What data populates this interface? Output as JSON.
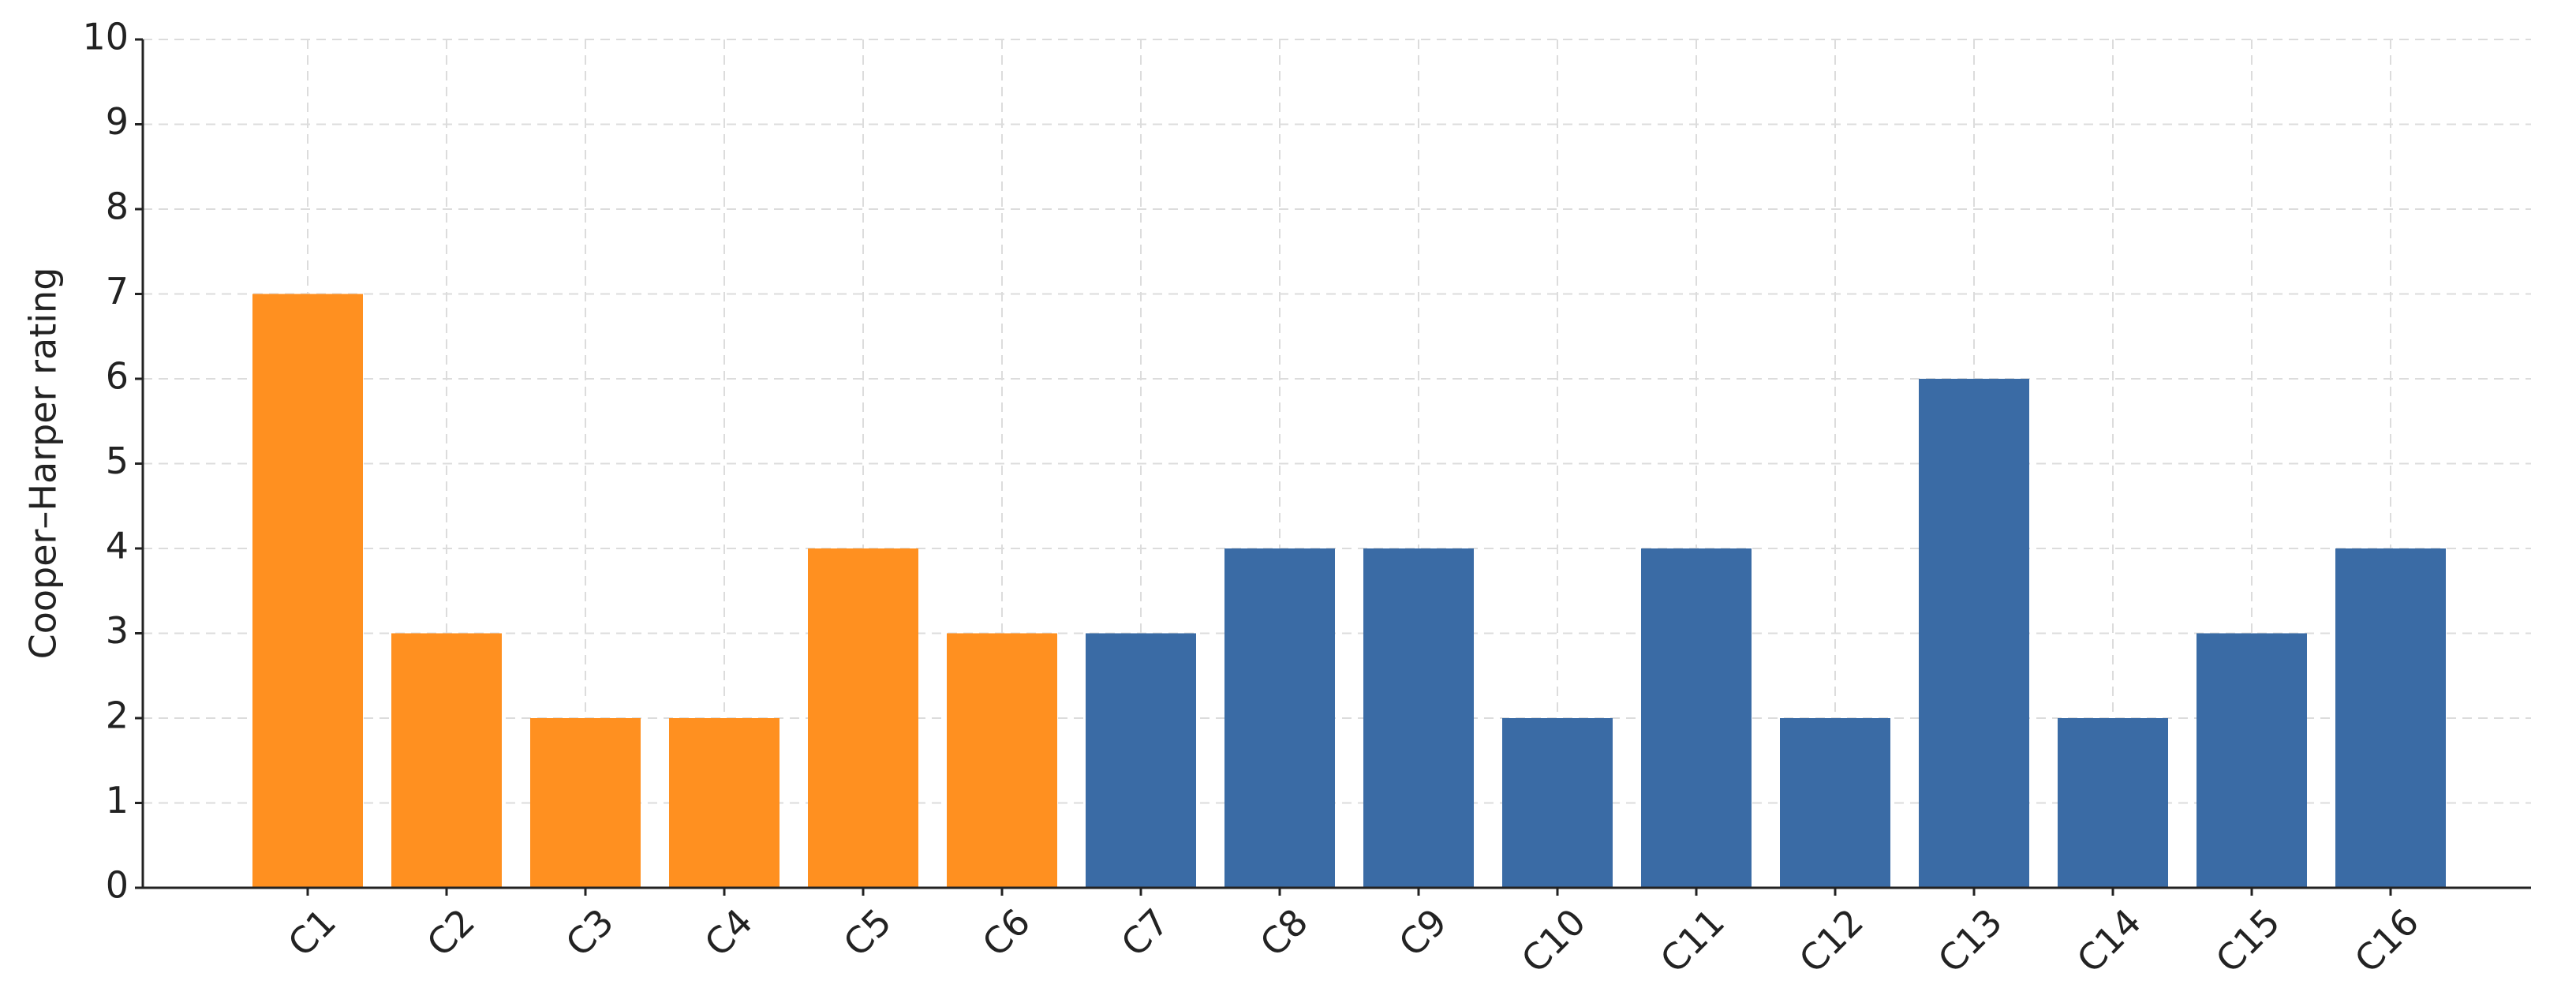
{
  "chart_data": {
    "type": "bar",
    "ylabel": "Cooper–Harper rating",
    "categories": [
      "C1",
      "C2",
      "C3",
      "C4",
      "C5",
      "C6",
      "C7",
      "C8",
      "C9",
      "C10",
      "C11",
      "C12",
      "C13",
      "C14",
      "C15",
      "C16"
    ],
    "values": [
      7,
      3,
      2,
      2,
      4,
      3,
      3,
      4,
      4,
      2,
      4,
      2,
      6,
      2,
      3,
      4
    ],
    "colors": [
      "#ff9020",
      "#ff9020",
      "#ff9020",
      "#ff9020",
      "#ff9020",
      "#ff9020",
      "#3a6ba5",
      "#3a6ba5",
      "#3a6ba5",
      "#3a6ba5",
      "#3a6ba5",
      "#3a6ba5",
      "#3a6ba5",
      "#3a6ba5",
      "#3a6ba5",
      "#3a6ba5"
    ],
    "ylim": [
      0,
      10
    ],
    "yticks": [
      0,
      1,
      2,
      3,
      4,
      5,
      6,
      7,
      8,
      9,
      10
    ],
    "grid": true
  }
}
